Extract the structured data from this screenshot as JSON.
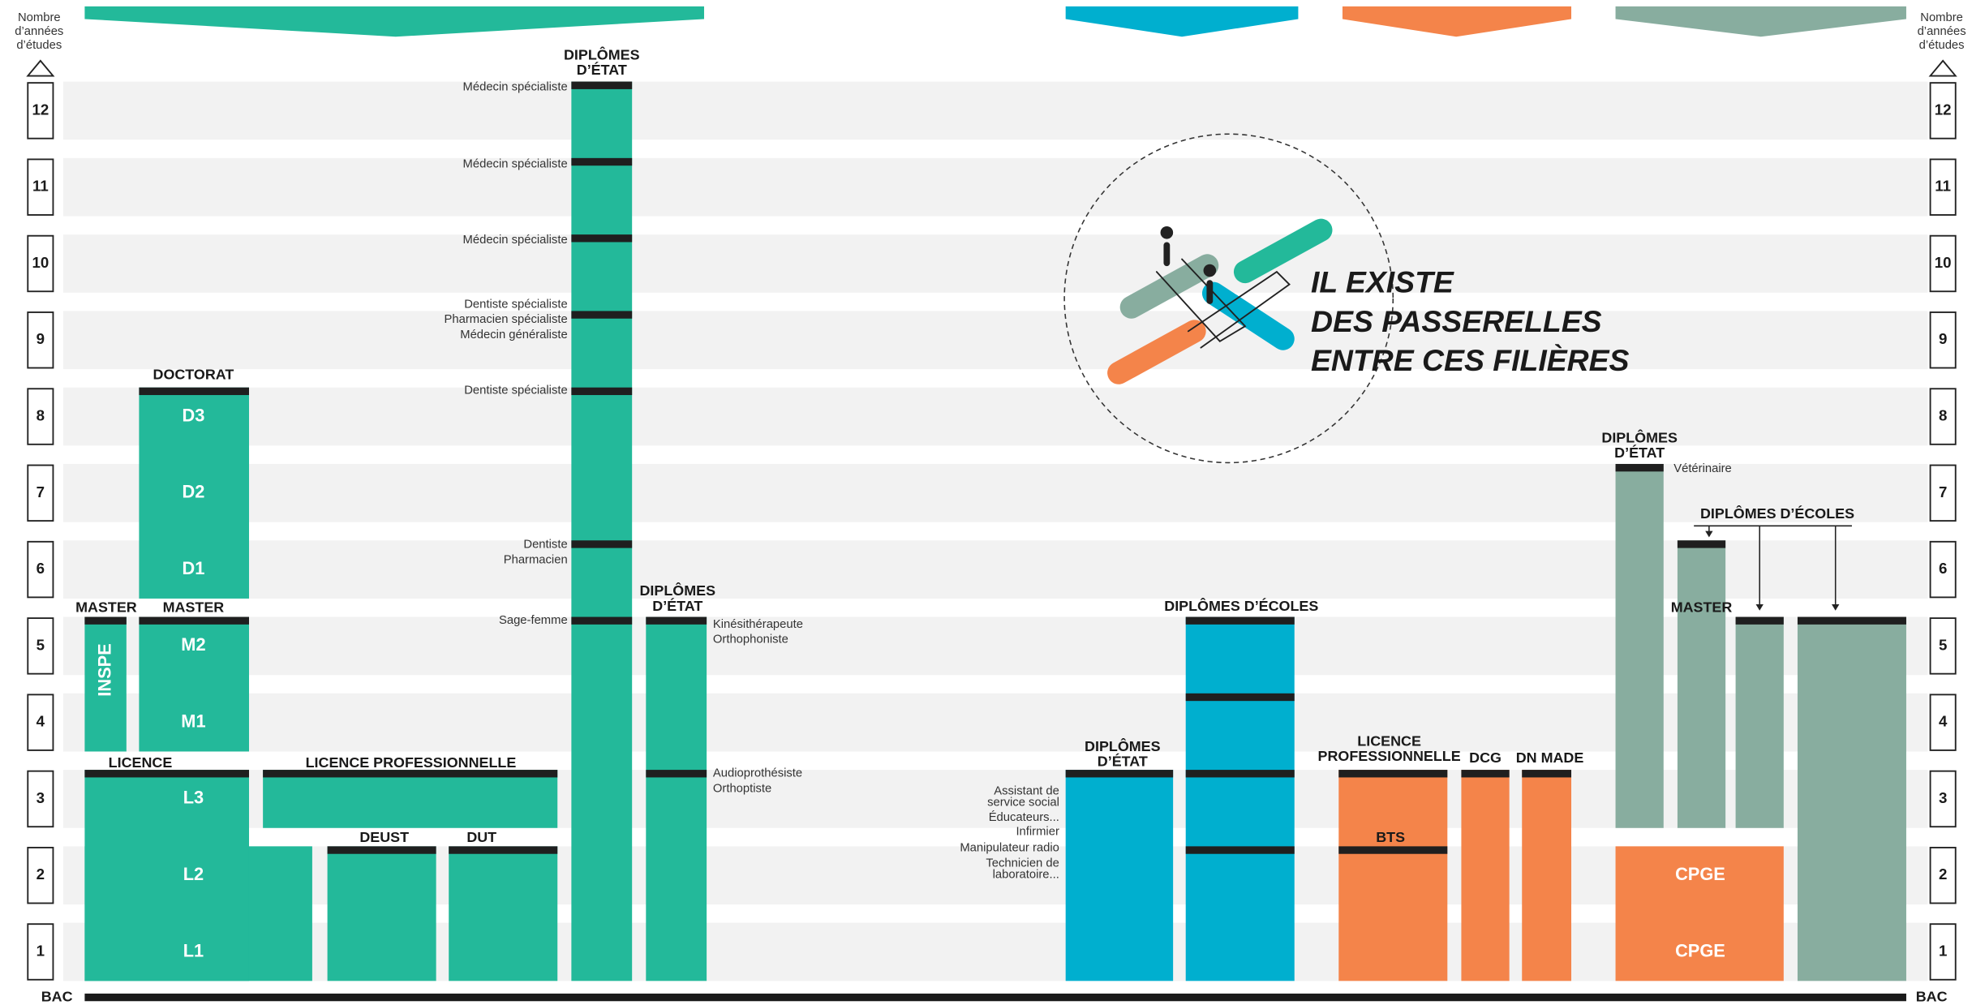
{
  "axis": {
    "title": [
      "Nombre",
      "d’années",
      "d’études"
    ],
    "years": [
      1,
      2,
      3,
      4,
      5,
      6,
      7,
      8,
      9,
      10,
      11,
      12
    ],
    "baseline": "BAC"
  },
  "tagline": [
    "IL EXISTE",
    "DES PASSERELLES",
    "ENTRE CES FILIÈRES"
  ],
  "universite": {
    "doctorat": {
      "title": "DOCTORAT",
      "levels": [
        "D3",
        "D2",
        "D1"
      ]
    },
    "master_inspe": {
      "title": "MASTER",
      "label": "INSPE"
    },
    "master": {
      "title": "MASTER",
      "levels": [
        "M2",
        "M1"
      ]
    },
    "licence": {
      "title": "LICENCE",
      "levels": [
        "L3",
        "L2",
        "L1"
      ]
    },
    "licence_pro": "LICENCE PROFESSIONNELLE",
    "deust": "DEUST",
    "dut": "DUT"
  },
  "sante": {
    "title": [
      "DIPLÔMES",
      "D’ÉTAT"
    ],
    "notes": [
      "Médecin spécialiste",
      "Médecin spécialiste",
      "Médecin spécialiste",
      "Dentiste spécialiste",
      "Pharmacien spécialiste",
      "Médecin généraliste",
      "Dentiste spécialiste",
      "Dentiste",
      "Pharmacien",
      "Sage-femme"
    ]
  },
  "paramedical": {
    "title": [
      "DIPLÔMES",
      "D’ÉTAT"
    ],
    "notes": [
      "Kinésithérapeute",
      "Orthophoniste",
      "Audioprothésiste",
      "Orthoptiste"
    ]
  },
  "social": {
    "title": [
      "DIPLÔMES",
      "D’ÉTAT"
    ],
    "notes": [
      "Assistant de",
      "service social",
      "Éducateurs...",
      "Infirmier",
      "Manipulateur radio",
      "Technicien de",
      "laboratoire..."
    ]
  },
  "ecoles": {
    "title": "DIPLÔMES D’ÉCOLES"
  },
  "courtes": {
    "licence_pro": [
      "LICENCE",
      "PROFESSIONNELLE"
    ],
    "bts": "BTS",
    "dcg": "DCG",
    "dn_made": "DN MADE"
  },
  "prepa": {
    "etat": {
      "title": [
        "DIPLÔMES",
        "D’ÉTAT"
      ],
      "note": "Vétérinaire"
    },
    "ecoles": "DIPLÔMES D’ÉCOLES",
    "master": "MASTER",
    "cpge": [
      "CPGE",
      "CPGE"
    ]
  }
}
